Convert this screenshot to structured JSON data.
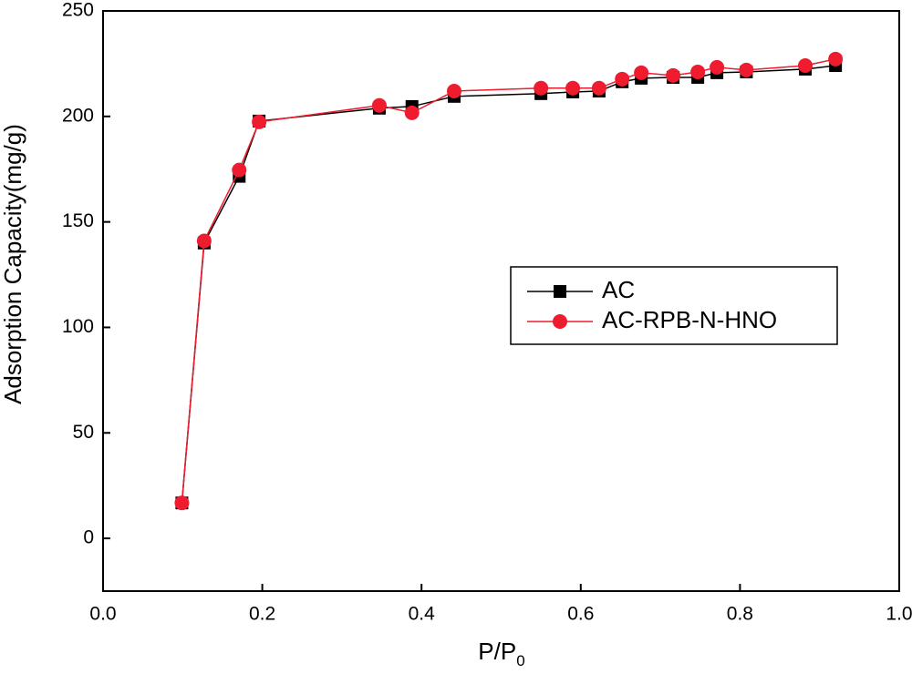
{
  "chart_data": {
    "type": "line",
    "x_label": {
      "text": "P/P",
      "subscript": "0"
    },
    "y_label": "Adsorption Capacity(mg/g)",
    "xlim": [
      0,
      1.0
    ],
    "xticks": [
      {
        "value": 0,
        "label": "0.0"
      },
      {
        "value": 0.2,
        "label": "0.2"
      },
      {
        "value": 0.4,
        "label": "0.4"
      },
      {
        "value": 0.6,
        "label": "0.6"
      },
      {
        "value": 0.8,
        "label": "0.8"
      },
      {
        "value": 1.0,
        "label": "1.0"
      }
    ],
    "ylim": [
      -25,
      250
    ],
    "yticks": [
      0,
      50,
      100,
      150,
      200,
      250
    ],
    "legend_position": "center right",
    "x": [
      0.099,
      0.127,
      0.171,
      0.196,
      0.347,
      0.388,
      0.441,
      0.55,
      0.59,
      0.623,
      0.652,
      0.676,
      0.716,
      0.747,
      0.771,
      0.808,
      0.882,
      0.92
    ],
    "series": [
      {
        "name": "AC",
        "color": "#000000",
        "marker": "square",
        "values": [
          16.8,
          140,
          171.6,
          197.8,
          203.9,
          204.7,
          209.5,
          210.8,
          211.6,
          212,
          216.4,
          218.1,
          218.5,
          218.5,
          220.7,
          221.1,
          222.4,
          224.1
        ]
      },
      {
        "name": "AC-RPB-N-HNO",
        "color": "#ee1c2e",
        "marker": "circle",
        "values": [
          16.8,
          141,
          174.6,
          197.4,
          205.2,
          201.7,
          212,
          213.4,
          213.4,
          213.4,
          217.7,
          220.7,
          219.4,
          221.1,
          223.3,
          222,
          224.1,
          227.2
        ]
      }
    ]
  }
}
